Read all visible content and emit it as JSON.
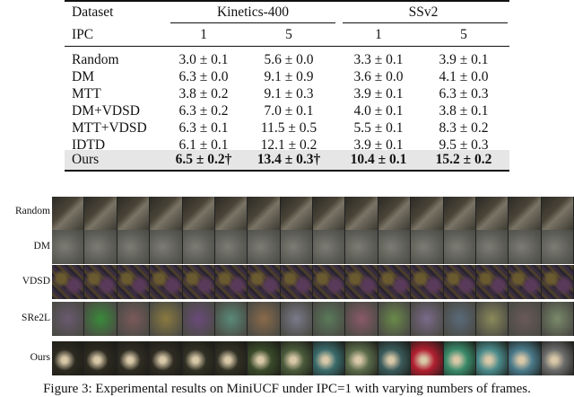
{
  "table": {
    "header": {
      "dataset": "Dataset",
      "kinetics": "Kinetics-400",
      "ssv2": "SSv2"
    },
    "ipc_row": {
      "label": "IPC",
      "values": [
        "1",
        "5",
        "1",
        "5"
      ]
    },
    "rows": [
      {
        "method": "Random",
        "k1": "3.0 ± 0.1",
        "k5": "5.6 ± 0.0",
        "s1": "3.3 ± 0.1",
        "s5": "3.9 ± 0.1"
      },
      {
        "method": "DM",
        "k1": "6.3 ± 0.0",
        "k5": "9.1 ± 0.9",
        "s1": "3.6 ± 0.0",
        "s5": "4.1 ± 0.0"
      },
      {
        "method": "MTT",
        "k1": "3.8 ± 0.2",
        "k5": "9.1 ± 0.3",
        "s1": "3.9 ± 0.1",
        "s5": "6.3 ± 0.3"
      },
      {
        "method": "DM+VDSD",
        "k1": "6.3 ± 0.2",
        "k5": "7.0 ± 0.1",
        "s1": "4.0 ± 0.1",
        "s5": "3.8 ± 0.1"
      },
      {
        "method": "MTT+VDSD",
        "k1": "6.3 ± 0.1",
        "k5": "11.5 ± 0.5",
        "s1": "5.5 ± 0.1",
        "s5": "8.3 ± 0.2"
      },
      {
        "method": "IDTD",
        "k1": "6.1 ± 0.1",
        "k5": "12.1 ± 0.2",
        "s1": "3.9 ± 0.1",
        "s5": "9.5 ± 0.3"
      }
    ],
    "ours": {
      "method": "Ours",
      "k1": "6.5 ± 0.2†",
      "k5": "13.4 ± 0.3†",
      "s1": "10.4 ± 0.1",
      "s5": "15.2 ± 0.2"
    }
  },
  "figure": {
    "row_labels": [
      "Random",
      "DM",
      "VDSD",
      "SRe2L",
      "Ours"
    ],
    "caption": "Figure 3: Experimental results on MiniUCF under IPC=1 with varying numbers of frames."
  },
  "colors": {
    "shade": "#e6e6e6",
    "rule": "#111111"
  }
}
